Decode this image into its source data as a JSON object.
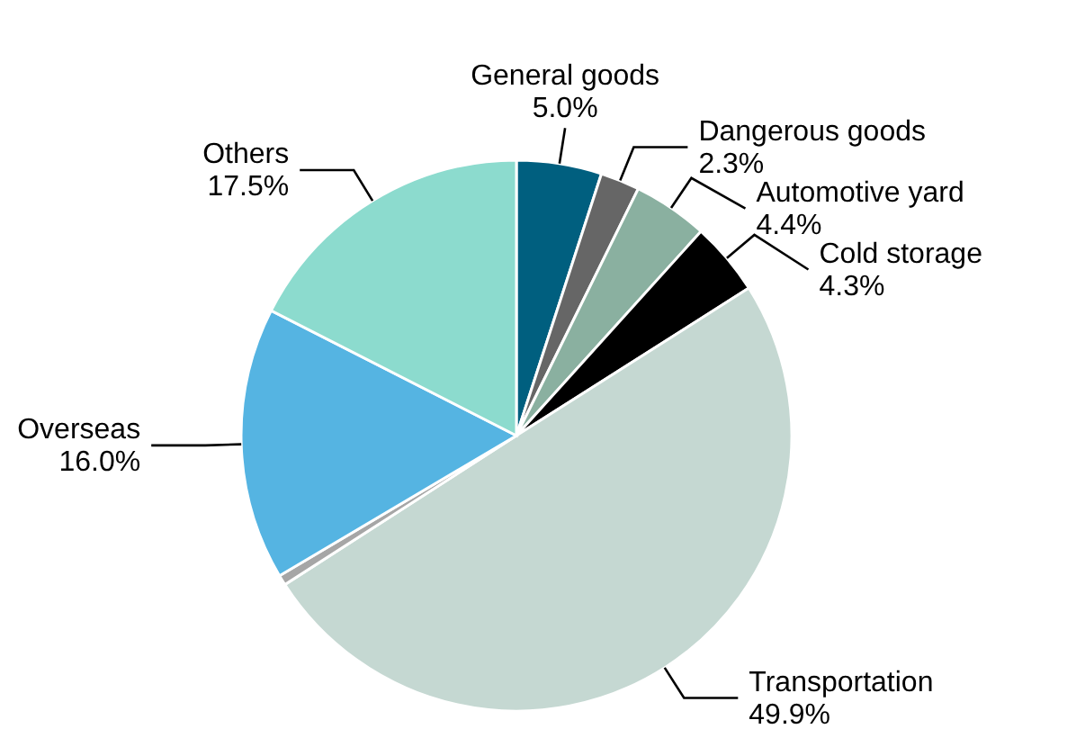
{
  "chart_data": {
    "type": "pie",
    "categories": [
      "General goods",
      "Dangerous goods",
      "Automotive yard",
      "Cold storage",
      "Transportation",
      null,
      "Overseas",
      "Others"
    ],
    "values": [
      5.0,
      2.3,
      4.4,
      4.3,
      49.9,
      0.6,
      16.0,
      17.5
    ],
    "colors": [
      "#005f7f",
      "#666666",
      "#8ab0a0",
      "#000000",
      "#c5d8d2",
      "#a6a6a6",
      "#55b4e2",
      "#8cdbce"
    ],
    "value_labels": [
      "5.0%",
      "2.3%",
      "4.4%",
      "4.3%",
      "49.9%",
      null,
      "16.0%",
      "17.5%"
    ]
  }
}
